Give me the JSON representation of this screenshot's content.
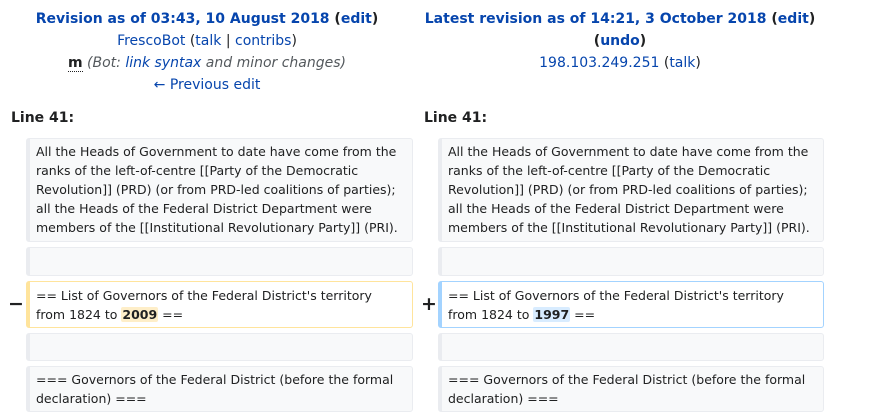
{
  "left_header": {
    "title": "Revision as of 03:43, 10 August 2018",
    "edit_open": " (",
    "edit": "edit",
    "edit_close": ")",
    "user": "FrescoBot",
    "talk_open": " (",
    "talk": "talk",
    "sep": " | ",
    "contribs": "contribs",
    "talk_close": ")",
    "minor": "m",
    "summary_pre": " (Bot: ",
    "summary_link": "link syntax",
    "summary_post": " and minor changes)",
    "prev_edit": "← Previous edit"
  },
  "right_header": {
    "title": "Latest revision as of 14:21, 3 October 2018",
    "edit_open": " (",
    "edit": "edit",
    "edit_close": ")",
    "undo_open": "(",
    "undo": "undo",
    "undo_close": ")",
    "user": "198.103.249.251",
    "talk_open": " (",
    "talk": "talk",
    "talk_close": ")"
  },
  "line_left": "Line 41:",
  "line_right": "Line 41:",
  "context1": "All the Heads of Government to date have come from the ranks of the left-of-centre [[Party of the Democratic Revolution]] (PRD) (or from PRD-led coalitions of parties); all the Heads of the Federal District Department were members of the [[Institutional Revolutionary Party]] (PRI).",
  "removed": {
    "marker": "−",
    "text_before": "== List of Governors of the Federal District's territory from 1824 to ",
    "changed": "2009",
    "text_after": " =="
  },
  "added": {
    "marker": "+",
    "text_before": "== List of Governors of the Federal District's territory from 1824 to ",
    "changed": "1997",
    "text_after": " =="
  },
  "context3": "=== Governors of the Federal District (before the formal declaration) ==="
}
